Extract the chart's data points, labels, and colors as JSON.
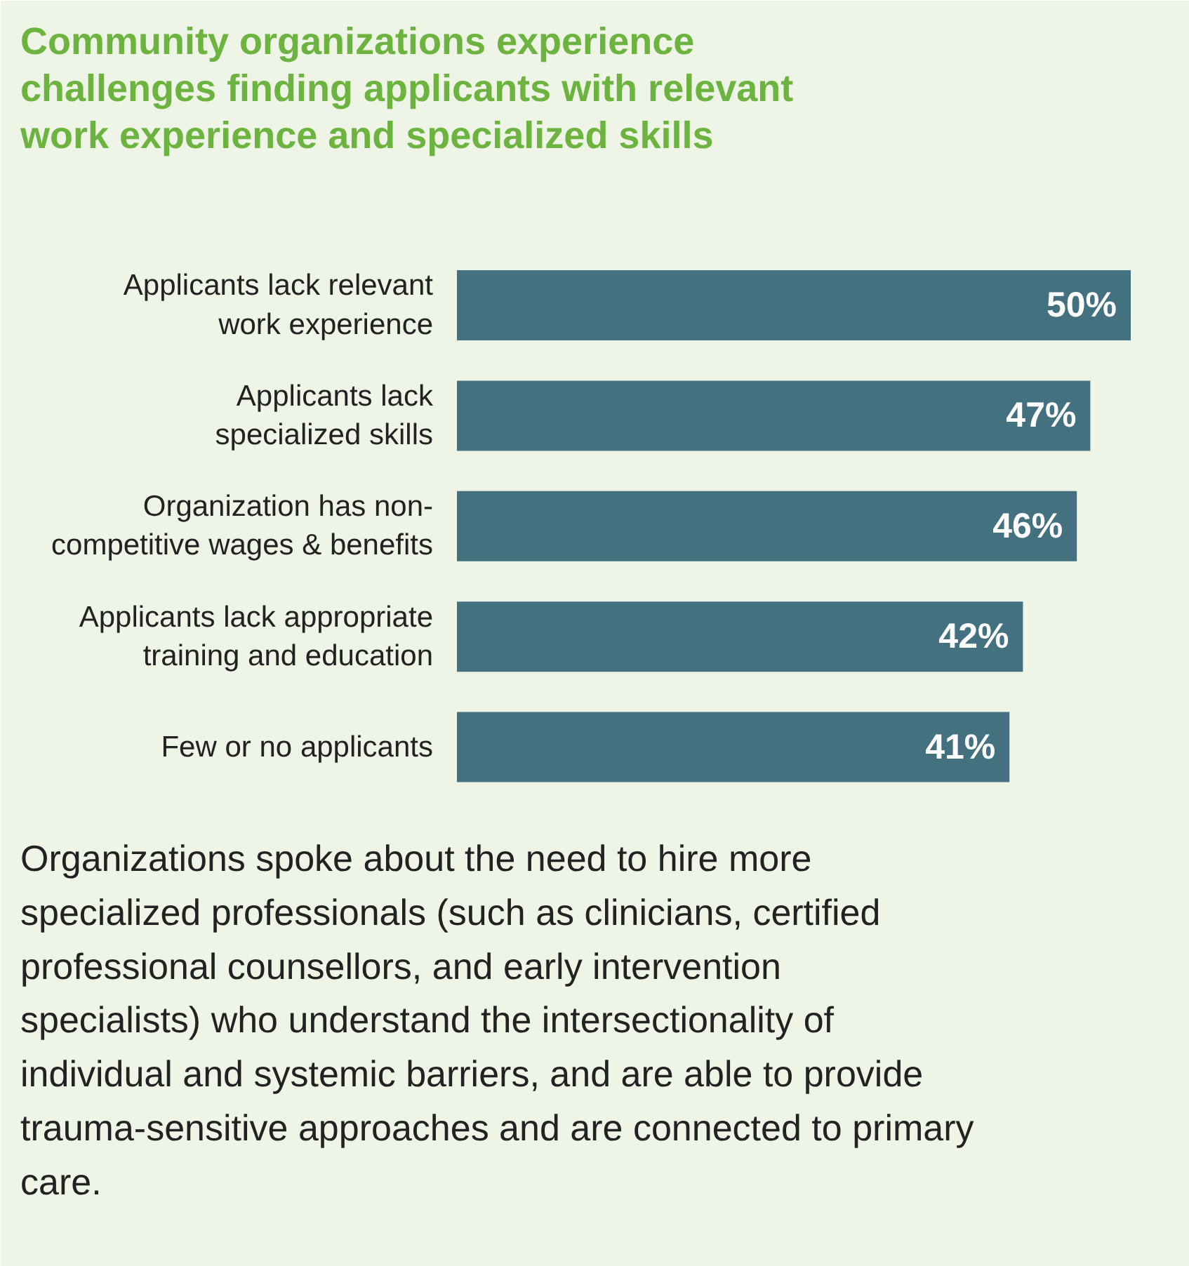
{
  "chart_data": {
    "type": "bar",
    "orientation": "horizontal",
    "title": "Community organizations experience challenges finding applicants with relevant work experience and specialized skills",
    "categories": [
      "Applicants lack relevant\nwork experience",
      "Applicants lack\nspecialized skills",
      "Organization has non-\ncompetitive wages & benefits",
      "Applicants lack appropriate\ntraining and education",
      "Few or no applicants"
    ],
    "values": [
      50,
      47,
      46,
      42,
      41
    ],
    "value_labels": [
      "50%",
      "47%",
      "46%",
      "42%",
      "41%"
    ],
    "color": "#44717f",
    "annotations": [
      "Organizations spoke about the need to hire more specialized professionals (such as clinicians, certified professional counsellors, and early intervention specialists) who understand the intersectionality of individual and systemic barriers, and are able to provide trauma-sensitive approaches and are connected to primary care."
    ]
  }
}
